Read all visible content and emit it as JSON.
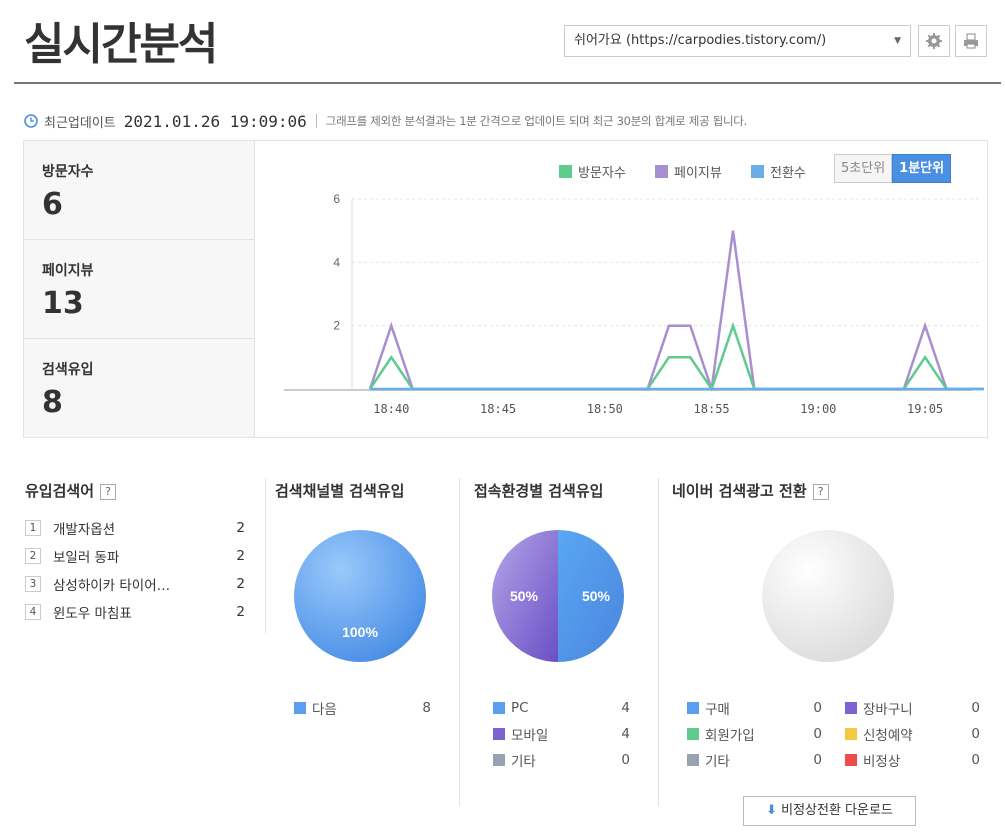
{
  "page": {
    "title": "실시간분석"
  },
  "blog_select": {
    "value": "쉬어가요 (https://carpodies.tistory.com/)"
  },
  "buttons": {
    "settings_icon": "gear-icon",
    "print_icon": "printer-icon"
  },
  "update": {
    "label": "최근업데이트",
    "time": "2021.01.26 19:09:06",
    "note": "그래프를 제외한 분석결과는 1분 간격으로 업데이트 되며 최근 30분의 합계로 제공 됩니다."
  },
  "stats": [
    {
      "name": "방문자수",
      "value": "6"
    },
    {
      "name": "페이지뷰",
      "value": "13"
    },
    {
      "name": "검색유입",
      "value": "8"
    }
  ],
  "legend": {
    "visitors": "방문자수",
    "pageviews": "페이지뷰",
    "conversions": "전환수"
  },
  "unit_buttons": {
    "sec5": "5초단위",
    "min1": "1분단위"
  },
  "colors": {
    "visitors": "#5fcb8f",
    "pageviews": "#a88fd0",
    "conversions": "#6aaee8",
    "accent": "#4a90e2"
  },
  "chart_data": {
    "type": "line",
    "x_ticks": [
      "18:40",
      "18:45",
      "18:50",
      "18:55",
      "19:00",
      "19:05"
    ],
    "y_ticks": [
      "2",
      "4",
      "6"
    ],
    "ylim": [
      0,
      6
    ],
    "x": [
      "18:39",
      "18:40",
      "18:41",
      "18:42",
      "18:43",
      "18:44",
      "18:45",
      "18:46",
      "18:47",
      "18:48",
      "18:49",
      "18:50",
      "18:51",
      "18:52",
      "18:53",
      "18:54",
      "18:55",
      "18:56",
      "18:57",
      "18:58",
      "18:59",
      "19:00",
      "19:01",
      "19:02",
      "19:03",
      "19:04",
      "19:05",
      "19:06",
      "19:07",
      "19:08",
      "19:09"
    ],
    "series": [
      {
        "name": "페이지뷰",
        "values": [
          0,
          2,
          0,
          0,
          0,
          0,
          0,
          0,
          0,
          0,
          0,
          0,
          0,
          0,
          2,
          2,
          0,
          5,
          0,
          0,
          0,
          0,
          0,
          0,
          0,
          0,
          2,
          0,
          0,
          0,
          0
        ]
      },
      {
        "name": "방문자수",
        "values": [
          0,
          1,
          0,
          0,
          0,
          0,
          0,
          0,
          0,
          0,
          0,
          0,
          0,
          0,
          1,
          1,
          0,
          2,
          0,
          0,
          0,
          0,
          0,
          0,
          0,
          0,
          1,
          0,
          0,
          0,
          0
        ]
      },
      {
        "name": "전환수",
        "values": [
          0,
          0,
          0,
          0,
          0,
          0,
          0,
          0,
          0,
          0,
          0,
          0,
          0,
          0,
          0,
          0,
          0,
          0,
          0,
          0,
          0,
          0,
          0,
          0,
          0,
          0,
          0,
          0,
          0,
          0,
          0
        ]
      }
    ],
    "grid": true
  },
  "keywords": {
    "title": "유입검색어",
    "help": "?",
    "items": [
      {
        "rank": "1",
        "keyword": "개발자옵션",
        "count": "2"
      },
      {
        "rank": "2",
        "keyword": "보일러 동파",
        "count": "2"
      },
      {
        "rank": "3",
        "keyword": "삼성하이카 타이어…",
        "count": "2"
      },
      {
        "rank": "4",
        "keyword": "윈도우 마침표",
        "count": "2"
      }
    ]
  },
  "channel": {
    "title": "검색채널별 검색유입",
    "pie_label": "100%",
    "items": [
      {
        "label": "다음",
        "value": "8",
        "color": "#5b9ef0"
      }
    ]
  },
  "device": {
    "title": "접속환경별 검색유입",
    "pie_left": "50%",
    "pie_right": "50%",
    "items": [
      {
        "label": "PC",
        "value": "4",
        "color": "#5b9ef0"
      },
      {
        "label": "모바일",
        "value": "4",
        "color": "#7d63d0"
      },
      {
        "label": "기타",
        "value": "0",
        "color": "#98a2b0"
      }
    ]
  },
  "naver": {
    "title": "네이버 검색광고 전환",
    "help": "?",
    "left_items": [
      {
        "label": "구매",
        "value": "0",
        "color": "#5b9ef0"
      },
      {
        "label": "회원가입",
        "value": "0",
        "color": "#5fcb8f"
      },
      {
        "label": "기타",
        "value": "0",
        "color": "#98a2b0"
      }
    ],
    "right_items": [
      {
        "label": "장바구니",
        "value": "0",
        "color": "#7d63d0"
      },
      {
        "label": "신청예약",
        "value": "0",
        "color": "#f5c842"
      },
      {
        "label": "비정상",
        "value": "0",
        "color": "#ee4b4b"
      }
    ],
    "download_label": "비정상전환 다운로드"
  }
}
